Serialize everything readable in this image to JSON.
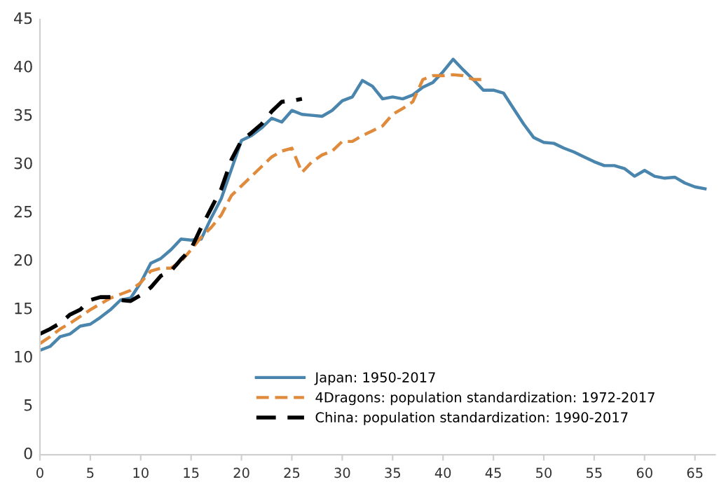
{
  "chart_data": {
    "type": "line",
    "xlim": [
      0,
      67
    ],
    "xticks": [
      0,
      5,
      10,
      15,
      20,
      25,
      30,
      35,
      40,
      45,
      50,
      55,
      60,
      65
    ],
    "ylim": [
      0,
      45
    ],
    "yticks": [
      0,
      5,
      10,
      15,
      20,
      25,
      30,
      35,
      40,
      45
    ],
    "grid": false,
    "legend": "bottom right",
    "series": [
      {
        "name": "Japan: 1950-2017",
        "color": "#4a85ad",
        "line_style": "solid",
        "x": [
          0,
          1,
          2,
          3,
          4,
          5,
          6,
          7,
          8,
          9,
          10,
          11,
          12,
          13,
          14,
          15,
          16,
          17,
          18,
          19,
          20,
          21,
          22,
          23,
          24,
          25,
          26,
          27,
          28,
          29,
          30,
          31,
          32,
          33,
          34,
          35,
          36,
          37,
          38,
          39,
          40,
          41,
          42,
          43,
          44,
          45,
          46,
          47,
          48,
          49,
          50,
          51,
          52,
          53,
          54,
          55,
          56,
          57,
          58,
          59,
          60,
          61,
          62,
          63,
          64,
          65,
          66
        ],
        "values": [
          10.8,
          11.2,
          12.2,
          12.5,
          13.3,
          13.5,
          14.2,
          15.0,
          16.0,
          16.2,
          17.8,
          19.8,
          20.3,
          21.2,
          22.3,
          22.2,
          22.3,
          24.5,
          26.5,
          29.5,
          32.5,
          33.0,
          33.8,
          34.8,
          34.4,
          35.6,
          35.2,
          35.1,
          35.0,
          35.6,
          36.6,
          37.0,
          38.7,
          38.1,
          36.8,
          37.0,
          36.8,
          37.2,
          38.0,
          38.5,
          39.6,
          40.9,
          39.8,
          38.8,
          37.7,
          37.7,
          37.4,
          35.8,
          34.2,
          32.8,
          32.3,
          32.2,
          31.7,
          31.3,
          30.8,
          30.3,
          29.9,
          29.9,
          29.6,
          28.8,
          29.4,
          28.8,
          28.6,
          28.7,
          28.1,
          27.7,
          27.5
        ]
      },
      {
        "name": "4Dragons: population standardization: 1972-2017",
        "color": "#e08a3c",
        "line_style": "dashed",
        "x": [
          0,
          1,
          2,
          3,
          4,
          5,
          6,
          7,
          8,
          9,
          10,
          11,
          12,
          13,
          14,
          15,
          16,
          17,
          18,
          19,
          20,
          21,
          22,
          23,
          24,
          25,
          26,
          27,
          28,
          29,
          30,
          31,
          32,
          33,
          34,
          35,
          36,
          37,
          38,
          39,
          40,
          41,
          42,
          43,
          44
        ],
        "values": [
          11.5,
          12.2,
          13.0,
          13.6,
          14.3,
          15.0,
          15.6,
          16.2,
          16.6,
          17.0,
          17.8,
          19.0,
          19.3,
          19.3,
          20.0,
          21.2,
          22.5,
          23.5,
          24.8,
          26.8,
          27.8,
          28.8,
          29.8,
          30.8,
          31.4,
          31.7,
          29.2,
          30.3,
          31.0,
          31.4,
          32.4,
          32.4,
          33.0,
          33.5,
          34.0,
          35.2,
          35.8,
          36.5,
          38.8,
          39.2,
          39.2,
          39.3,
          39.2,
          38.8,
          38.8
        ]
      },
      {
        "name": "China: population standardization: 1990-2017",
        "color": "#000000",
        "line_style": "dashed",
        "x": [
          0,
          1,
          2,
          3,
          4,
          5,
          6,
          7,
          8,
          9,
          10,
          11,
          12,
          13,
          14,
          15,
          16,
          17,
          18,
          19,
          20,
          21,
          22,
          23,
          24,
          25,
          26
        ],
        "values": [
          12.5,
          13.0,
          13.6,
          14.5,
          15.0,
          16.0,
          16.3,
          16.3,
          16.0,
          15.9,
          16.5,
          17.3,
          18.5,
          19.0,
          20.2,
          21.3,
          23.5,
          25.5,
          27.5,
          30.5,
          32.5,
          33.3,
          34.2,
          35.5,
          36.5,
          36.6,
          36.8
        ]
      }
    ]
  }
}
